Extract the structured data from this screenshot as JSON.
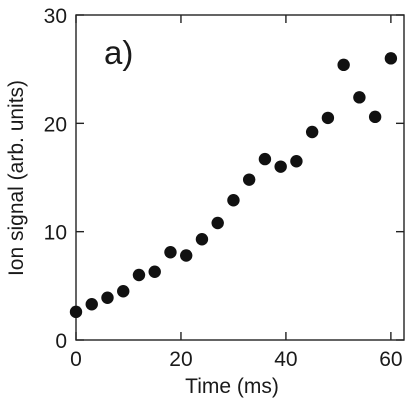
{
  "chart_data": {
    "type": "scatter",
    "panel_label": "a)",
    "xlabel": "Time (ms)",
    "ylabel": "Ion signal (arb. units)",
    "xlim": [
      0,
      62.5
    ],
    "ylim": [
      0,
      30
    ],
    "xticks": [
      0,
      20,
      40,
      60
    ],
    "yticks": [
      0,
      10,
      20,
      30
    ],
    "grid": false,
    "marker_color": "#111111",
    "series": [
      {
        "x": [
          0,
          3,
          6,
          9,
          12,
          15,
          18,
          21,
          24,
          27,
          30,
          33,
          36,
          39,
          42,
          45,
          48,
          51,
          54,
          57,
          60
        ],
        "y": [
          2.6,
          3.3,
          3.9,
          4.5,
          6.0,
          6.3,
          8.1,
          7.8,
          9.3,
          10.8,
          12.9,
          14.8,
          16.7,
          16.0,
          16.5,
          19.2,
          20.5,
          25.4,
          22.4,
          20.6,
          26.0
        ]
      }
    ]
  }
}
